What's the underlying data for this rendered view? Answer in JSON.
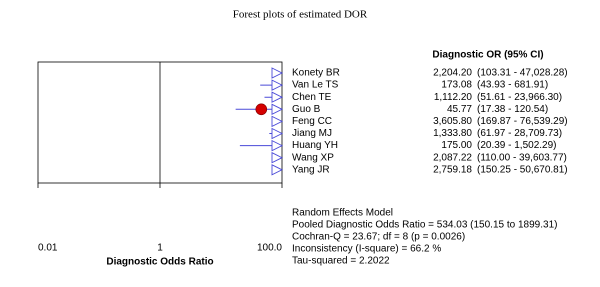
{
  "chart_data": {
    "type": "forest",
    "title": "Forest plots of estimated DOR",
    "column_header": "Diagnostic OR (95% CI)",
    "xlabel": "Diagnostic Odds Ratio",
    "xscale": "log",
    "xlim": [
      0.01,
      100
    ],
    "xticks": [
      0.01,
      1,
      {
        "value": 100,
        "label": "100.0"
      }
    ],
    "reference_line": 1,
    "categories": [
      "Konety BR",
      "Van Le TS",
      "Chen TE",
      "Guo B",
      "Feng CC",
      "Jiang MJ",
      "Huang YH",
      "Wang XP",
      "Yang JR"
    ],
    "values": [
      2204.2,
      173.08,
      1112.2,
      45.77,
      3605.8,
      1333.8,
      175.0,
      2087.22,
      2759.18
    ],
    "value_labels": [
      "2,204.20",
      "173.08",
      "1,112.20",
      "45.77",
      "3,605.80",
      "1,333.80",
      "175.00",
      "2,087.22",
      "2,759.18"
    ],
    "lower": [
      103.31,
      43.93,
      51.61,
      17.38,
      169.87,
      61.97,
      20.39,
      110.0,
      150.25
    ],
    "upper": [
      47028.28,
      681.91,
      23966.3,
      120.54,
      76539.29,
      28709.73,
      1502.29,
      39603.77,
      50670.81
    ],
    "ci_labels": [
      "(103.31 - 47,028.28)",
      "(43.93 - 681.91)",
      "(51.61 - 23,966.30)",
      "(17.38 - 120.54)",
      "(169.87 - 76,539.29)",
      "(61.97 - 28,709.73)",
      "(20.39 - 1,502.29)",
      "(110.00 - 39,603.77)",
      "(150.25 - 50,670.81)"
    ],
    "color": "#4a4ad8",
    "point_color": "#d40000",
    "notes": [
      "Random Effects Model",
      "Pooled Diagnostic Odds Ratio = 534.03 (150.15 to 1899.31)",
      "Cochran-Q = 23.67; df =  8 (p = 0.0026)",
      "Inconsistency (I-square) = 66.2 %",
      "Tau-squared = 2.2022"
    ]
  }
}
